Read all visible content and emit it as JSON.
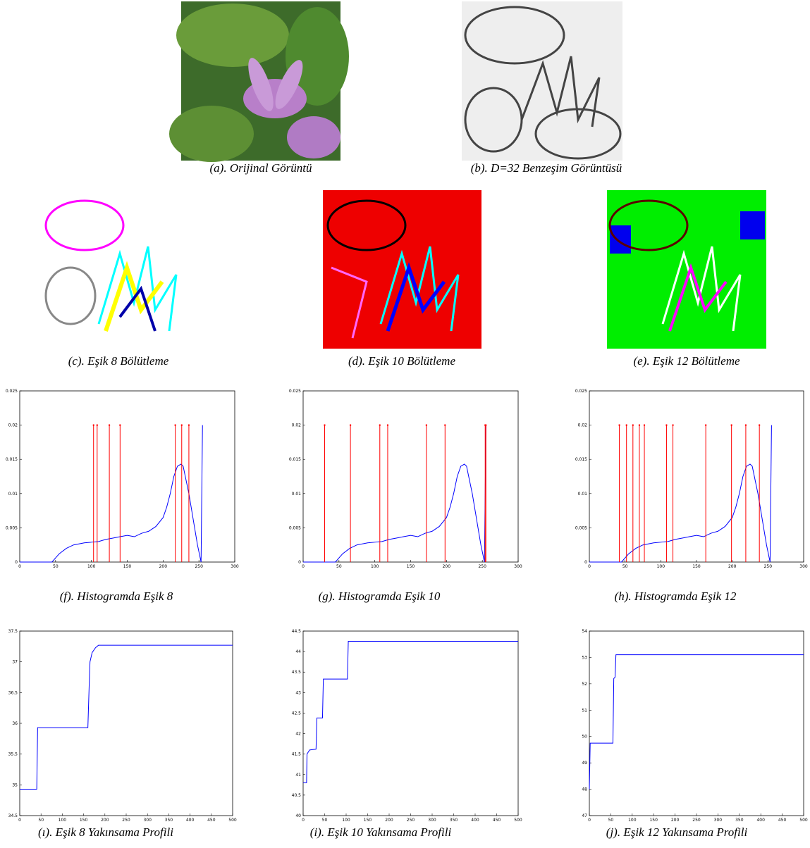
{
  "images": [
    {
      "caption": "(a). Orijinal Görüntü"
    },
    {
      "caption": "(b). D=32 Benzeşim Görüntüsü"
    },
    {
      "caption": "(c). Eşik 8 Bölütleme"
    },
    {
      "caption": "(d). Eşik 10 Bölütleme"
    },
    {
      "caption": "(e). Eşik 12 Bölütleme"
    }
  ],
  "chart_data": [
    {
      "type": "line",
      "caption": "(f). Histogramda Eşik 8",
      "xlim": [
        0,
        300
      ],
      "xticks": [
        0,
        50,
        100,
        150,
        200,
        250,
        300
      ],
      "ylim": [
        0,
        0.025
      ],
      "yticks": [
        0,
        0.005,
        0.01,
        0.015,
        0.02,
        0.025
      ],
      "series": [
        {
          "color": "#0000ff",
          "x": [
            0,
            45,
            55,
            65,
            75,
            90,
            100,
            110,
            120,
            130,
            140,
            150,
            160,
            170,
            180,
            190,
            200,
            205,
            210,
            215,
            220,
            225,
            228,
            232,
            236,
            240,
            244,
            248,
            251,
            253,
            254,
            255
          ],
          "values": [
            0,
            0,
            0.0012,
            0.002,
            0.0025,
            0.0028,
            0.0029,
            0.003,
            0.0033,
            0.0035,
            0.0037,
            0.0039,
            0.0037,
            0.0042,
            0.0045,
            0.0052,
            0.0065,
            0.008,
            0.01,
            0.0125,
            0.014,
            0.0143,
            0.014,
            0.012,
            0.01,
            0.0075,
            0.005,
            0.0025,
            0.001,
            0,
            0.01,
            0.02
          ]
        },
        {
          "color": "#ff0000",
          "style": "stem",
          "x": [
            103,
            108,
            125,
            140,
            217,
            226,
            236
          ],
          "values": [
            0.02,
            0.02,
            0.02,
            0.02,
            0.02,
            0.02,
            0.02
          ]
        }
      ]
    },
    {
      "type": "line",
      "caption": "(g). Histogramda Eşik 10",
      "xlim": [
        0,
        300
      ],
      "xticks": [
        0,
        50,
        100,
        150,
        200,
        250,
        300
      ],
      "ylim": [
        0,
        0.025
      ],
      "yticks": [
        0,
        0.005,
        0.01,
        0.015,
        0.02,
        0.025
      ],
      "series": [
        {
          "color": "#0000ff",
          "x": [
            0,
            45,
            55,
            65,
            75,
            90,
            100,
            110,
            120,
            130,
            140,
            150,
            160,
            170,
            180,
            190,
            200,
            205,
            210,
            215,
            220,
            225,
            228,
            232,
            236,
            240,
            244,
            248,
            251,
            253,
            254,
            255
          ],
          "values": [
            0,
            0,
            0.0012,
            0.002,
            0.0025,
            0.0028,
            0.0029,
            0.003,
            0.0033,
            0.0035,
            0.0037,
            0.0039,
            0.0037,
            0.0042,
            0.0045,
            0.0052,
            0.0065,
            0.008,
            0.01,
            0.0125,
            0.014,
            0.0143,
            0.014,
            0.012,
            0.01,
            0.0075,
            0.005,
            0.0025,
            0.001,
            0,
            0.01,
            0.02
          ]
        },
        {
          "color": "#ff0000",
          "style": "stem",
          "x": [
            30,
            66,
            107,
            118,
            172,
            198,
            254,
            255
          ],
          "values": [
            0.02,
            0.02,
            0.02,
            0.02,
            0.02,
            0.02,
            0.02,
            0.02
          ]
        }
      ]
    },
    {
      "type": "line",
      "caption": "(h). Histogramda Eşik 12",
      "xlim": [
        0,
        300
      ],
      "xticks": [
        0,
        50,
        100,
        150,
        200,
        250,
        300
      ],
      "ylim": [
        0,
        0.025
      ],
      "yticks": [
        0,
        0.005,
        0.01,
        0.015,
        0.02,
        0.025
      ],
      "series": [
        {
          "color": "#0000ff",
          "x": [
            0,
            45,
            55,
            65,
            75,
            90,
            100,
            110,
            120,
            130,
            140,
            150,
            160,
            170,
            180,
            190,
            200,
            205,
            210,
            215,
            220,
            225,
            228,
            232,
            236,
            240,
            244,
            248,
            251,
            253,
            254,
            255
          ],
          "values": [
            0,
            0,
            0.0012,
            0.002,
            0.0025,
            0.0028,
            0.0029,
            0.003,
            0.0033,
            0.0035,
            0.0037,
            0.0039,
            0.0037,
            0.0042,
            0.0045,
            0.0052,
            0.0065,
            0.008,
            0.01,
            0.0125,
            0.014,
            0.0143,
            0.014,
            0.012,
            0.01,
            0.0075,
            0.005,
            0.0025,
            0.001,
            0,
            0.01,
            0.02
          ]
        },
        {
          "color": "#ff0000",
          "style": "stem",
          "x": [
            42,
            52,
            61,
            70,
            77,
            108,
            117,
            163,
            199,
            219,
            238
          ],
          "values": [
            0.02,
            0.02,
            0.02,
            0.02,
            0.02,
            0.02,
            0.02,
            0.02,
            0.02,
            0.02,
            0.02
          ]
        }
      ]
    },
    {
      "type": "line",
      "caption": "(ı). Eşik 8 Yakınsama Profili",
      "xlim": [
        0,
        500
      ],
      "xticks": [
        0,
        50,
        100,
        150,
        200,
        250,
        300,
        350,
        400,
        450,
        500
      ],
      "ylim": [
        34.5,
        37.5
      ],
      "yticks": [
        34.5,
        35,
        35.5,
        36,
        36.5,
        37,
        37.5
      ],
      "series": [
        {
          "color": "#0000ff",
          "x": [
            0,
            40,
            42,
            160,
            163,
            165,
            170,
            178,
            185,
            500
          ],
          "values": [
            34.93,
            34.93,
            35.93,
            35.93,
            36.6,
            37.0,
            37.15,
            37.23,
            37.27,
            37.27
          ]
        }
      ]
    },
    {
      "type": "line",
      "caption": "(i). Eşik 10 Yakınsama Profili",
      "xlim": [
        0,
        500
      ],
      "xticks": [
        0,
        50,
        100,
        150,
        200,
        250,
        300,
        350,
        400,
        450,
        500
      ],
      "ylim": [
        40,
        44.5
      ],
      "yticks": [
        40,
        40.5,
        41,
        41.5,
        42,
        42.5,
        43,
        43.5,
        44,
        44.5
      ],
      "series": [
        {
          "color": "#0000ff",
          "x": [
            0,
            8,
            9,
            15,
            30,
            32,
            45,
            47,
            103,
            105,
            500
          ],
          "values": [
            40.8,
            40.8,
            41.5,
            41.6,
            41.62,
            42.38,
            42.38,
            43.33,
            43.33,
            44.25,
            44.25
          ]
        }
      ]
    },
    {
      "type": "line",
      "caption": "(j). Eşik 12 Yakınsama Profili",
      "xlim": [
        0,
        500
      ],
      "xticks": [
        0,
        50,
        100,
        150,
        200,
        250,
        300,
        350,
        400,
        450,
        500
      ],
      "ylim": [
        47,
        54
      ],
      "yticks": [
        47,
        48,
        49,
        50,
        51,
        52,
        53,
        54
      ],
      "series": [
        {
          "color": "#0000ff",
          "x": [
            0,
            2,
            55,
            57,
            60,
            62,
            500
          ],
          "values": [
            48,
            49.75,
            49.75,
            52.2,
            52.25,
            53.1,
            53.1
          ]
        }
      ]
    }
  ]
}
